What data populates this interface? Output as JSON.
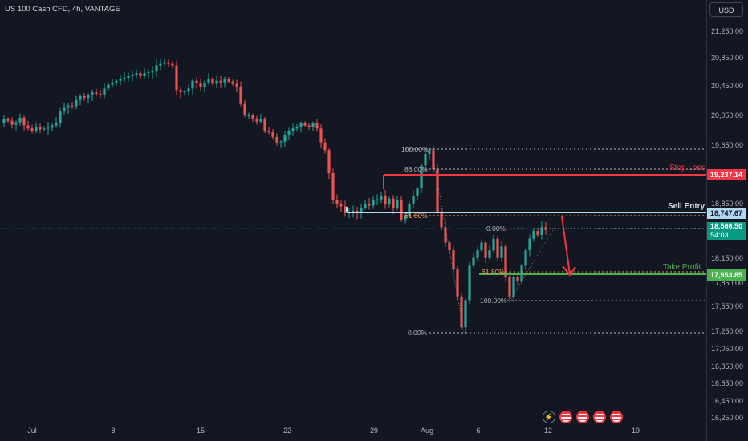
{
  "header": {
    "title": "US 100 Cash CFD, 4h, VANTAGE",
    "currency_button": "USD"
  },
  "y_axis": {
    "ticks": [
      "21,250.00",
      "20,850.00",
      "20,450.00",
      "20,050.00",
      "19,650.00",
      "18,850.00",
      "18,150.00",
      "17,850.00",
      "17,550.00",
      "17,250.00",
      "17,050.00",
      "16,850.00",
      "16,650.00",
      "16,450.00",
      "16,250.00"
    ]
  },
  "x_axis": {
    "ticks": [
      "Jul",
      "8",
      "15",
      "22",
      "29",
      "Aug",
      "6",
      "12",
      "19"
    ]
  },
  "price_tags": {
    "stop_loss": "19,237.14",
    "sell_entry": "18,747.67",
    "current": "18,566.50",
    "countdown": "54:03",
    "take_profit": "17,953.85"
  },
  "annotations": {
    "stop_loss": "Stop Loss",
    "sell_entry": "Sell Entry",
    "take_profit": "Take Profit"
  },
  "fib_upper": [
    "100.00%",
    "88.00%",
    "61.80%",
    "0.00%"
  ],
  "fib_lower": [
    "0.00%",
    "61.80%",
    "100.00%"
  ],
  "colors": {
    "up": "#26a69a",
    "down": "#ef5350",
    "sell_entry": "#b2d7f0",
    "stop": "#f23645",
    "take": "#4caf50",
    "bg": "#131722"
  },
  "icons": [
    "lightning-icon",
    "us-flag-icon",
    "us-flag-icon",
    "us-flag-icon",
    "us-flag-icon"
  ],
  "chart_data": {
    "type": "candlestick",
    "title": "US 100 Cash CFD, 4h, VANTAGE",
    "ylim": [
      16150,
      21400
    ],
    "x_labels": [
      "Jul",
      "8",
      "15",
      "22",
      "29",
      "Aug",
      "6",
      "12",
      "19"
    ],
    "levels": {
      "stop_loss": 19237.14,
      "sell_entry": 18747.67,
      "current": 18566.5,
      "take_profit": 17953.85
    },
    "close_path": [
      [
        0,
        19950
      ],
      [
        5,
        20000
      ],
      [
        10,
        19980
      ],
      [
        15,
        19930
      ],
      [
        20,
        19960
      ],
      [
        25,
        20020
      ],
      [
        30,
        19920
      ],
      [
        35,
        19880
      ],
      [
        40,
        19850
      ],
      [
        45,
        19900
      ],
      [
        50,
        19870
      ],
      [
        55,
        19880
      ],
      [
        60,
        19890
      ],
      [
        65,
        19920
      ],
      [
        70,
        19950
      ],
      [
        75,
        20100
      ],
      [
        80,
        20150
      ],
      [
        85,
        20180
      ],
      [
        90,
        20170
      ],
      [
        95,
        20250
      ],
      [
        100,
        20300
      ],
      [
        105,
        20280
      ],
      [
        110,
        20310
      ],
      [
        115,
        20350
      ],
      [
        120,
        20330
      ],
      [
        125,
        20320
      ],
      [
        130,
        20400
      ],
      [
        135,
        20450
      ],
      [
        140,
        20480
      ],
      [
        145,
        20500
      ],
      [
        150,
        20520
      ],
      [
        155,
        20540
      ],
      [
        160,
        20560
      ],
      [
        165,
        20580
      ],
      [
        170,
        20600
      ],
      [
        175,
        20560
      ],
      [
        180,
        20600
      ],
      [
        185,
        20610
      ],
      [
        190,
        20620
      ],
      [
        195,
        20700
      ],
      [
        200,
        20720
      ],
      [
        205,
        20740
      ],
      [
        210,
        20720
      ],
      [
        215,
        20700
      ],
      [
        220,
        20380
      ],
      [
        225,
        20350
      ],
      [
        230,
        20360
      ],
      [
        235,
        20400
      ],
      [
        240,
        20500
      ],
      [
        245,
        20470
      ],
      [
        250,
        20420
      ],
      [
        255,
        20480
      ],
      [
        260,
        20530
      ],
      [
        265,
        20460
      ],
      [
        270,
        20500
      ],
      [
        275,
        20480
      ],
      [
        280,
        20520
      ],
      [
        285,
        20490
      ],
      [
        290,
        20460
      ],
      [
        295,
        20420
      ],
      [
        300,
        20200
      ],
      [
        305,
        20050
      ],
      [
        310,
        20050
      ],
      [
        315,
        20010
      ],
      [
        320,
        19970
      ],
      [
        325,
        20000
      ],
      [
        330,
        19840
      ],
      [
        335,
        19830
      ],
      [
        340,
        19770
      ],
      [
        345,
        19700
      ],
      [
        350,
        19710
      ],
      [
        355,
        19800
      ],
      [
        360,
        19850
      ],
      [
        365,
        19880
      ],
      [
        370,
        19900
      ],
      [
        375,
        19950
      ],
      [
        380,
        19920
      ],
      [
        385,
        19900
      ],
      [
        390,
        19950
      ],
      [
        395,
        19880
      ],
      [
        400,
        19700
      ],
      [
        405,
        19600
      ],
      [
        410,
        19300
      ],
      [
        415,
        18950
      ],
      [
        420,
        18900
      ],
      [
        425,
        18870
      ],
      [
        430,
        18780
      ],
      [
        435,
        18800
      ],
      [
        440,
        18810
      ],
      [
        445,
        18780
      ],
      [
        450,
        18850
      ],
      [
        455,
        18900
      ],
      [
        460,
        18880
      ],
      [
        465,
        18950
      ],
      [
        470,
        18960
      ],
      [
        475,
        19010
      ],
      [
        480,
        18900
      ],
      [
        485,
        18970
      ],
      [
        490,
        18850
      ],
      [
        495,
        18950
      ],
      [
        500,
        18700
      ],
      [
        505,
        18750
      ],
      [
        510,
        18900
      ],
      [
        515,
        19000
      ],
      [
        520,
        19100
      ],
      [
        525,
        19400
      ],
      [
        530,
        19550
      ],
      [
        535,
        19600
      ],
      [
        540,
        19350
      ],
      [
        545,
        18800
      ],
      [
        550,
        18600
      ],
      [
        555,
        18400
      ],
      [
        560,
        18300
      ],
      [
        565,
        18050
      ],
      [
        570,
        17700
      ],
      [
        575,
        17300
      ],
      [
        580,
        17650
      ],
      [
        585,
        18100
      ],
      [
        590,
        18200
      ],
      [
        595,
        18300
      ],
      [
        600,
        18400
      ],
      [
        605,
        18200
      ],
      [
        610,
        18300
      ],
      [
        615,
        18450
      ],
      [
        620,
        18200
      ],
      [
        625,
        18350
      ],
      [
        630,
        17950
      ],
      [
        635,
        17700
      ],
      [
        640,
        17950
      ],
      [
        645,
        17900
      ],
      [
        650,
        18100
      ],
      [
        655,
        18300
      ],
      [
        660,
        18450
      ],
      [
        665,
        18550
      ],
      [
        670,
        18500
      ],
      [
        675,
        18600
      ],
      [
        680,
        18566
      ]
    ]
  }
}
